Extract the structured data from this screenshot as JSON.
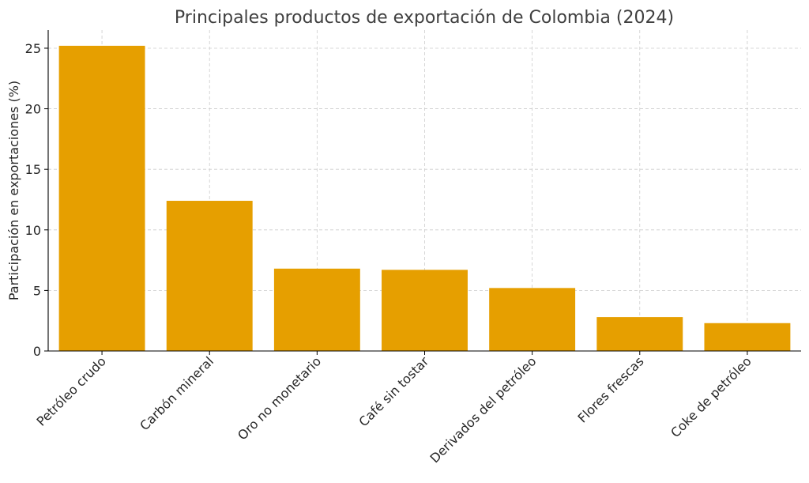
{
  "chart_data": {
    "type": "bar",
    "title": "Principales productos de exportación de Colombia (2024)",
    "xlabel": "",
    "ylabel": "Participación en exportaciones (%)",
    "categories": [
      "Petróleo crudo",
      "Carbón mineral",
      "Oro no monetario",
      "Café sin tostar",
      "Derivados del petróleo",
      "Flores frescas",
      "Coke de petróleo"
    ],
    "values": [
      25.2,
      12.4,
      6.8,
      6.7,
      5.2,
      2.8,
      2.3
    ],
    "ylim": [
      0,
      26.5
    ],
    "yticks": [
      0,
      5,
      10,
      15,
      20,
      25
    ],
    "bar_color": "#E69F00",
    "grid": true
  }
}
